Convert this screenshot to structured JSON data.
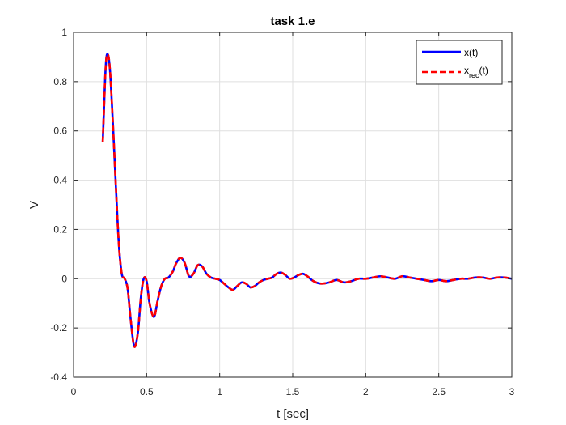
{
  "chart_data": {
    "type": "line",
    "title": "task 1.e",
    "xlabel": "t [sec]",
    "ylabel": "V",
    "xlim": [
      0,
      3
    ],
    "ylim": [
      -0.4,
      1
    ],
    "xticks": [
      "0",
      "0.5",
      "1",
      "1.5",
      "2",
      "2.5",
      "3"
    ],
    "yticks": [
      "-0.4",
      "-0.2",
      "0",
      "0.2",
      "0.4",
      "0.6",
      "0.8",
      "1"
    ],
    "grid": true,
    "legend_position": "top-right",
    "legend": {
      "entries": [
        {
          "text": "x(t)",
          "base": "x",
          "sub": "",
          "suffix": "(t)"
        },
        {
          "text": "x_rec(t)",
          "base": "x",
          "sub": "rec",
          "suffix": "(t)"
        }
      ]
    },
    "x": [
      0.2,
      0.22,
      0.235,
      0.25,
      0.27,
      0.29,
      0.31,
      0.33,
      0.35,
      0.37,
      0.39,
      0.415,
      0.44,
      0.46,
      0.48,
      0.5,
      0.52,
      0.55,
      0.575,
      0.6,
      0.625,
      0.65,
      0.68,
      0.7,
      0.73,
      0.76,
      0.79,
      0.82,
      0.85,
      0.88,
      0.91,
      0.94,
      0.97,
      1.0,
      1.03,
      1.06,
      1.09,
      1.12,
      1.15,
      1.18,
      1.21,
      1.24,
      1.27,
      1.3,
      1.33,
      1.36,
      1.39,
      1.42,
      1.45,
      1.48,
      1.51,
      1.54,
      1.57,
      1.6,
      1.63,
      1.66,
      1.7,
      1.75,
      1.8,
      1.85,
      1.9,
      1.95,
      2.0,
      2.05,
      2.1,
      2.15,
      2.2,
      2.25,
      2.3,
      2.35,
      2.4,
      2.45,
      2.5,
      2.55,
      2.6,
      2.65,
      2.7,
      2.75,
      2.8,
      2.85,
      2.9,
      2.95,
      3.0
    ],
    "series": [
      {
        "name": "x(t)",
        "color": "#0000ff",
        "style": "solid",
        "values": [
          0.555,
          0.86,
          0.91,
          0.84,
          0.62,
          0.37,
          0.14,
          0.02,
          0.0,
          -0.04,
          -0.16,
          -0.275,
          -0.22,
          -0.08,
          0.0,
          -0.01,
          -0.1,
          -0.155,
          -0.09,
          -0.03,
          0.0,
          0.005,
          0.03,
          0.06,
          0.085,
          0.065,
          0.01,
          0.02,
          0.055,
          0.05,
          0.02,
          0.005,
          0.0,
          -0.005,
          -0.02,
          -0.035,
          -0.045,
          -0.03,
          -0.015,
          -0.02,
          -0.035,
          -0.03,
          -0.015,
          -0.005,
          0.0,
          0.005,
          0.02,
          0.025,
          0.015,
          0.0,
          0.005,
          0.015,
          0.02,
          0.01,
          -0.005,
          -0.015,
          -0.02,
          -0.015,
          -0.005,
          -0.015,
          -0.01,
          0.0,
          0.0,
          0.005,
          0.01,
          0.005,
          0.0,
          0.01,
          0.005,
          0.0,
          -0.005,
          -0.01,
          -0.005,
          -0.01,
          -0.005,
          0.0,
          0.0,
          0.005,
          0.005,
          0.0,
          0.005,
          0.005,
          0.0
        ]
      },
      {
        "name": "x_rec(t)",
        "color": "#ff0000",
        "style": "dashed",
        "values": [
          0.555,
          0.86,
          0.91,
          0.84,
          0.62,
          0.37,
          0.14,
          0.02,
          0.0,
          -0.04,
          -0.16,
          -0.275,
          -0.22,
          -0.08,
          0.0,
          -0.01,
          -0.1,
          -0.155,
          -0.09,
          -0.03,
          0.0,
          0.005,
          0.03,
          0.06,
          0.085,
          0.065,
          0.01,
          0.02,
          0.055,
          0.05,
          0.02,
          0.005,
          0.0,
          -0.005,
          -0.02,
          -0.035,
          -0.045,
          -0.03,
          -0.015,
          -0.02,
          -0.035,
          -0.03,
          -0.015,
          -0.005,
          0.0,
          0.005,
          0.02,
          0.025,
          0.015,
          0.0,
          0.005,
          0.015,
          0.02,
          0.01,
          -0.005,
          -0.015,
          -0.02,
          -0.015,
          -0.005,
          -0.015,
          -0.01,
          0.0,
          0.0,
          0.005,
          0.01,
          0.005,
          0.0,
          0.01,
          0.005,
          0.0,
          -0.005,
          -0.01,
          -0.005,
          -0.01,
          -0.005,
          0.0,
          0.0,
          0.005,
          0.005,
          0.0,
          0.005,
          0.005,
          0.0
        ]
      }
    ]
  }
}
